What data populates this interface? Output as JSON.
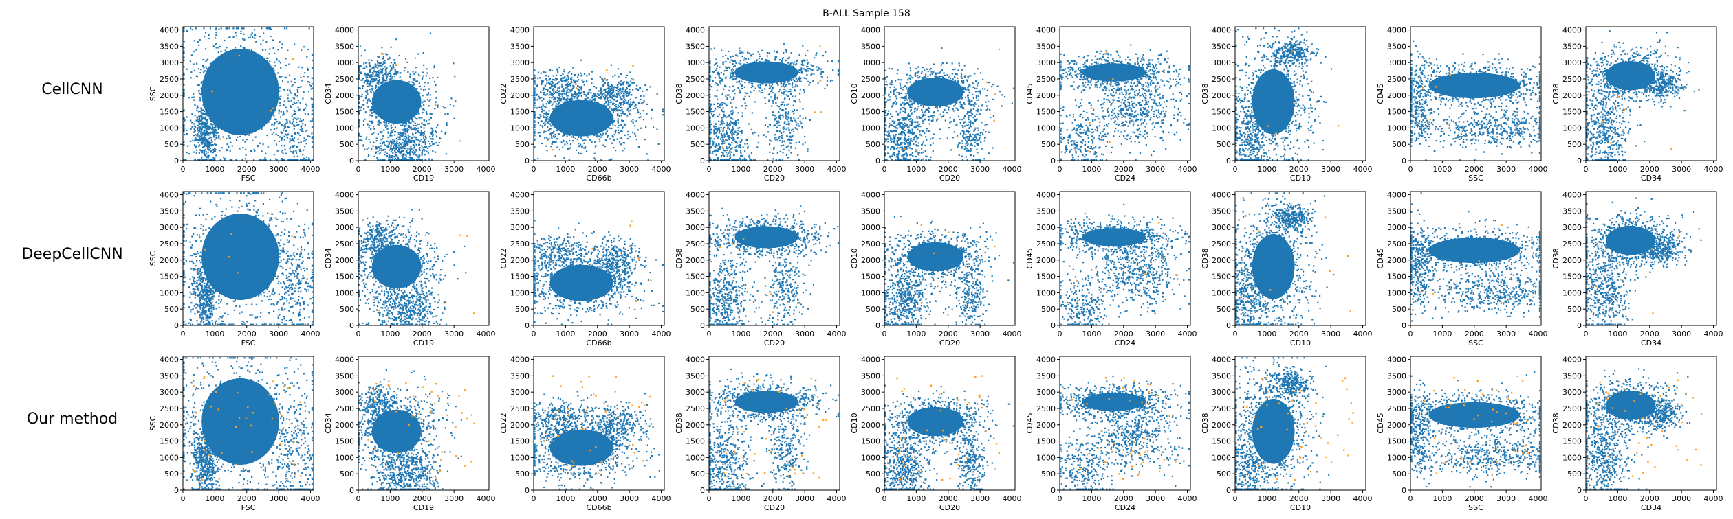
{
  "figure": {
    "title": "B-ALL Sample 158",
    "row_labels": [
      "CellCNN",
      "DeepCellCNN",
      "Our method"
    ]
  },
  "colors": {
    "cells": "#1f77b4",
    "highlighted_cells": "#ff9f1c",
    "axes": "#000000",
    "background": "#ffffff"
  },
  "chart_data": {
    "type": "scatter",
    "layout": "3 rows x 9 columns",
    "xlim": [
      0,
      4096
    ],
    "ylim": [
      0,
      4096
    ],
    "x_ticks": [
      0,
      1000,
      2000,
      3000,
      4000
    ],
    "y_ticks": [
      0,
      500,
      1000,
      1500,
      2000,
      2500,
      3000,
      3500,
      4000
    ],
    "grid": false,
    "series": [
      {
        "name": "",
        "color": "#1f77b4",
        "role": "all cells"
      },
      {
        "name": "",
        "color": "#ff9f1c",
        "role": "selected cells"
      }
    ],
    "panels": [
      {
        "xlabel": "FSC",
        "ylabel": "SSC"
      },
      {
        "xlabel": "CD19",
        "ylabel": "CD34"
      },
      {
        "xlabel": "CD66b",
        "ylabel": "CD22"
      },
      {
        "xlabel": "CD20",
        "ylabel": "CD38"
      },
      {
        "xlabel": "CD20",
        "ylabel": "CD10"
      },
      {
        "xlabel": "CD24",
        "ylabel": "CD45"
      },
      {
        "xlabel": "CD10",
        "ylabel": "CD38"
      },
      {
        "xlabel": "SSC",
        "ylabel": "CD45"
      },
      {
        "xlabel": "CD34",
        "ylabel": "CD38"
      }
    ]
  }
}
